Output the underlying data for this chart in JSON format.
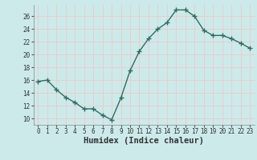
{
  "x": [
    0,
    1,
    2,
    3,
    4,
    5,
    6,
    7,
    8,
    9,
    10,
    11,
    12,
    13,
    14,
    15,
    16,
    17,
    18,
    19,
    20,
    21,
    22,
    23
  ],
  "y": [
    15.8,
    16.0,
    14.5,
    13.3,
    12.5,
    11.5,
    11.5,
    10.5,
    9.8,
    13.2,
    17.5,
    20.5,
    22.5,
    24.0,
    25.0,
    27.0,
    27.0,
    26.0,
    23.8,
    23.0,
    23.0,
    22.5,
    21.8,
    21.0
  ],
  "line_color": "#2d6e63",
  "marker": "+",
  "marker_size": 4,
  "bg_color": "#cceaea",
  "grid_color": "#f0c8c8",
  "xlabel": "Humidex (Indice chaleur)",
  "ylim": [
    9,
    27.8
  ],
  "xlim": [
    -0.5,
    23.5
  ],
  "yticks": [
    10,
    12,
    14,
    16,
    18,
    20,
    22,
    24,
    26
  ],
  "xticks": [
    0,
    1,
    2,
    3,
    4,
    5,
    6,
    7,
    8,
    9,
    10,
    11,
    12,
    13,
    14,
    15,
    16,
    17,
    18,
    19,
    20,
    21,
    22,
    23
  ],
  "tick_fontsize": 5.5,
  "label_fontsize": 7.5,
  "line_width": 1.0
}
